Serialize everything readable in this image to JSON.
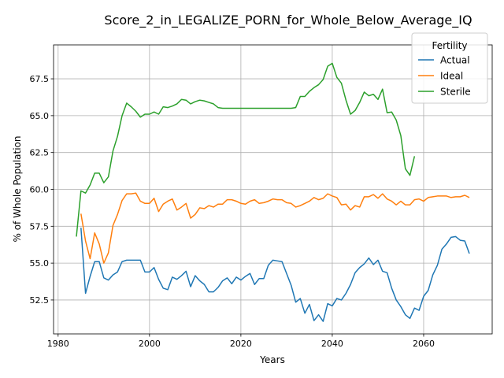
{
  "chart_data": {
    "type": "line",
    "title": "Score_2_in_LEGALIZE_PORN_for_Whole_Below_Average_IQ",
    "xlabel": "Years",
    "ylabel": "% of Whole Population",
    "xlim": [
      1979,
      2075
    ],
    "ylim": [
      50.2,
      69.8
    ],
    "xticks": [
      1980,
      2000,
      2020,
      2040,
      2060
    ],
    "yticks": [
      52.5,
      55.0,
      57.5,
      60.0,
      62.5,
      65.0,
      67.5
    ],
    "ytick_labels": [
      "52.5",
      "55.0",
      "57.5",
      "60.0",
      "62.5",
      "65.0",
      "67.5"
    ],
    "grid": true,
    "legend": {
      "title": "Fertility",
      "position": "top-right"
    },
    "series": [
      {
        "name": "Actual",
        "color": "#1f77b4",
        "x": [
          1985,
          1986,
          1987,
          1988,
          1989,
          1990,
          1991,
          1992,
          1993,
          1994,
          1995,
          1996,
          1997,
          1998,
          1999,
          2000,
          2001,
          2002,
          2003,
          2004,
          2005,
          2006,
          2007,
          2008,
          2009,
          2010,
          2011,
          2012,
          2013,
          2014,
          2015,
          2016,
          2017,
          2018,
          2019,
          2020,
          2021,
          2022,
          2023,
          2024,
          2025,
          2026,
          2027,
          2028,
          2029,
          2030,
          2031,
          2032,
          2033,
          2034,
          2035,
          2036,
          2037,
          2038,
          2039,
          2040,
          2041,
          2042,
          2043,
          2044,
          2045,
          2046,
          2047,
          2048,
          2049,
          2050,
          2051,
          2052,
          2053,
          2054,
          2055,
          2056,
          2057,
          2058,
          2059,
          2060,
          2061,
          2062,
          2063,
          2064,
          2065,
          2066,
          2067,
          2068,
          2069,
          2070
        ],
        "y": [
          57.4,
          52.95,
          54.1,
          55.1,
          55.1,
          54.0,
          53.85,
          54.2,
          54.4,
          55.1,
          55.2,
          55.2,
          55.2,
          55.2,
          54.4,
          54.4,
          54.7,
          53.9,
          53.3,
          53.2,
          54.05,
          53.9,
          54.15,
          54.45,
          53.4,
          54.15,
          53.8,
          53.55,
          53.05,
          53.05,
          53.35,
          53.8,
          54.0,
          53.6,
          54.05,
          53.85,
          54.1,
          54.3,
          53.55,
          53.95,
          53.95,
          54.85,
          55.2,
          55.15,
          55.1,
          54.3,
          53.5,
          52.35,
          52.6,
          51.6,
          52.2,
          51.1,
          51.5,
          51.05,
          52.25,
          52.1,
          52.6,
          52.5,
          52.95,
          53.55,
          54.35,
          54.7,
          54.95,
          55.35,
          54.9,
          55.2,
          54.45,
          54.35,
          53.3,
          52.5,
          52.05,
          51.5,
          51.25,
          51.95,
          51.8,
          52.75,
          53.15,
          54.2,
          54.85,
          55.95,
          56.3,
          56.75,
          56.8,
          56.55,
          56.5,
          55.65
        ]
      },
      {
        "name": "Ideal",
        "color": "#ff7f0e",
        "x": [
          1985,
          1986,
          1987,
          1988,
          1989,
          1990,
          1991,
          1992,
          1993,
          1994,
          1995,
          1996,
          1997,
          1998,
          1999,
          2000,
          2001,
          2002,
          2003,
          2004,
          2005,
          2006,
          2007,
          2008,
          2009,
          2010,
          2011,
          2012,
          2013,
          2014,
          2015,
          2016,
          2017,
          2018,
          2019,
          2020,
          2021,
          2022,
          2023,
          2024,
          2025,
          2026,
          2027,
          2028,
          2029,
          2030,
          2031,
          2032,
          2033,
          2034,
          2035,
          2036,
          2037,
          2038,
          2039,
          2040,
          2041,
          2042,
          2043,
          2044,
          2045,
          2046,
          2047,
          2048,
          2049,
          2050,
          2051,
          2052,
          2053,
          2054,
          2055,
          2056,
          2057,
          2058,
          2059,
          2060,
          2061,
          2062,
          2063,
          2064,
          2065,
          2066,
          2067,
          2068,
          2069,
          2070
        ],
        "y": [
          58.35,
          56.5,
          55.3,
          57.05,
          56.3,
          55.0,
          55.7,
          57.55,
          58.3,
          59.25,
          59.7,
          59.7,
          59.75,
          59.2,
          59.05,
          59.05,
          59.4,
          58.5,
          59.0,
          59.2,
          59.35,
          58.6,
          58.8,
          59.05,
          58.05,
          58.3,
          58.75,
          58.7,
          58.9,
          58.8,
          59.0,
          59.0,
          59.3,
          59.3,
          59.2,
          59.05,
          59.0,
          59.2,
          59.3,
          59.05,
          59.1,
          59.2,
          59.35,
          59.3,
          59.3,
          59.1,
          59.05,
          58.8,
          58.9,
          59.05,
          59.2,
          59.45,
          59.3,
          59.4,
          59.7,
          59.55,
          59.45,
          58.95,
          59.0,
          58.6,
          58.9,
          58.8,
          59.5,
          59.5,
          59.65,
          59.4,
          59.7,
          59.35,
          59.2,
          58.95,
          59.2,
          58.95,
          58.95,
          59.3,
          59.35,
          59.2,
          59.45,
          59.5,
          59.55,
          59.55,
          59.55,
          59.45,
          59.5,
          59.5,
          59.6,
          59.45
        ]
      },
      {
        "name": "Sterile",
        "color": "#2ca02c",
        "x": [
          1984,
          1985,
          1986,
          1987,
          1988,
          1989,
          1990,
          1991,
          1992,
          1993,
          1994,
          1995,
          1996,
          1997,
          1998,
          1999,
          2000,
          2001,
          2002,
          2003,
          2004,
          2005,
          2006,
          2007,
          2008,
          2009,
          2010,
          2011,
          2012,
          2013,
          2014,
          2015,
          2016,
          2017,
          2018,
          2019,
          2020,
          2021,
          2022,
          2023,
          2024,
          2025,
          2026,
          2027,
          2028,
          2029,
          2030,
          2031,
          2032,
          2033,
          2034,
          2035,
          2036,
          2037,
          2038,
          2039,
          2040,
          2041,
          2042,
          2043,
          2044,
          2045,
          2046,
          2047,
          2048,
          2049,
          2050,
          2051,
          2052,
          2053,
          2054,
          2055,
          2056,
          2057,
          2058
        ],
        "y": [
          56.8,
          59.9,
          59.75,
          60.3,
          61.1,
          61.1,
          60.45,
          60.85,
          62.6,
          63.6,
          65.0,
          65.85,
          65.6,
          65.3,
          64.9,
          65.1,
          65.1,
          65.25,
          65.1,
          65.6,
          65.55,
          65.65,
          65.8,
          66.1,
          66.05,
          65.8,
          65.95,
          66.05,
          66.0,
          65.9,
          65.8,
          65.55,
          65.5,
          65.5,
          65.5,
          65.5,
          65.5,
          65.5,
          65.5,
          65.5,
          65.5,
          65.5,
          65.5,
          65.5,
          65.5,
          65.5,
          65.5,
          65.5,
          65.55,
          66.3,
          66.3,
          66.65,
          66.9,
          67.1,
          67.45,
          68.35,
          68.55,
          67.6,
          67.2,
          66.05,
          65.1,
          65.35,
          65.9,
          66.6,
          66.35,
          66.45,
          66.1,
          66.8,
          65.2,
          65.25,
          64.7,
          63.65,
          61.4,
          60.95,
          62.25
        ]
      }
    ]
  }
}
